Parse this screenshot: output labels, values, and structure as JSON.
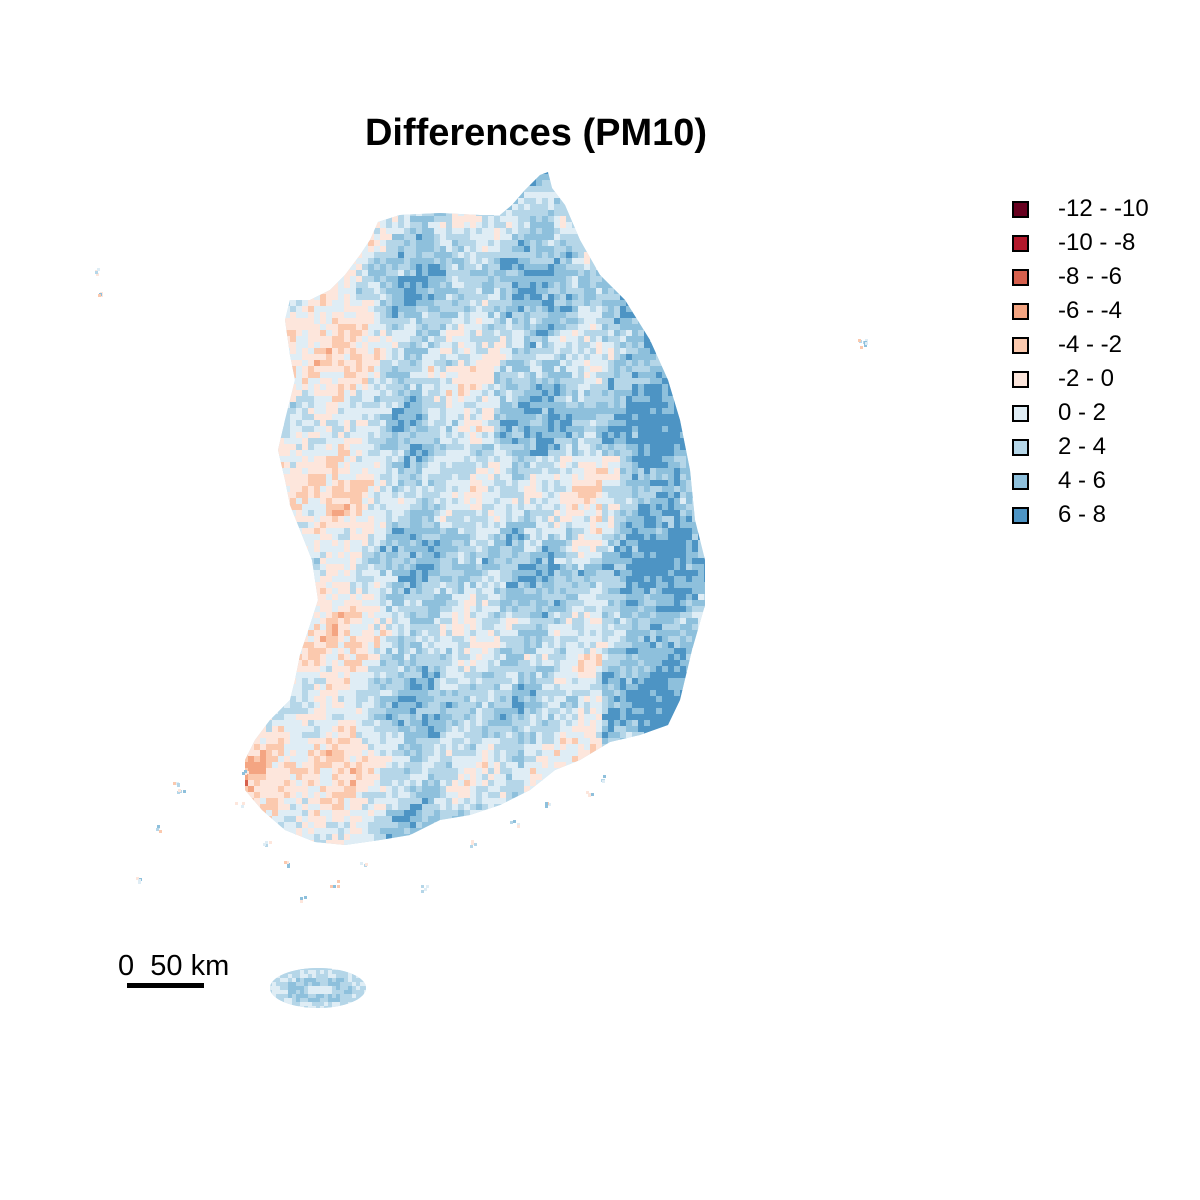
{
  "title": "Differences (PM10)",
  "legend": {
    "items": [
      {
        "label": "-12 - -10",
        "color": "#67001f"
      },
      {
        "label": "-10 - -8",
        "color": "#b2182b"
      },
      {
        "label": "-8 - -6",
        "color": "#d6604d"
      },
      {
        "label": "-6 - -4",
        "color": "#f4a582"
      },
      {
        "label": "-4 - -2",
        "color": "#fbc9ae"
      },
      {
        "label": "-2 - 0",
        "color": "#fde6dc"
      },
      {
        "label": "0 - 2",
        "color": "#dfedf5"
      },
      {
        "label": "2 - 4",
        "color": "#b5d6e8"
      },
      {
        "label": "4 - 6",
        "color": "#8ec0dc"
      },
      {
        "label": "6 - 8",
        "color": "#4d94c4"
      }
    ]
  },
  "scale_bar": {
    "label_start": "0",
    "label_end": "50",
    "unit": "km"
  },
  "map": {
    "region": "South Korea",
    "variable": "PM10 difference"
  }
}
